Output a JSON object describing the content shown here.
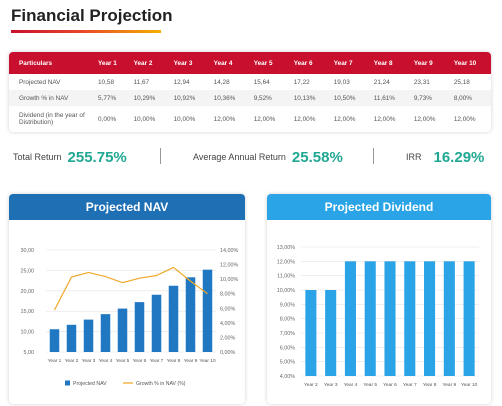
{
  "page": {
    "title": "Financial Projection"
  },
  "table": {
    "headers": [
      "Particulars",
      "Year 1",
      "Year 2",
      "Year 3",
      "Year 4",
      "Year 5",
      "Year 6",
      "Year 7",
      "Year 8",
      "Year 9",
      "Year 10"
    ],
    "rows": [
      [
        "Projected NAV",
        "10,58",
        "11,67",
        "12,94",
        "14,28",
        "15,64",
        "17,22",
        "19,03",
        "21,24",
        "23,31",
        "25,18"
      ],
      [
        "Growth % in NAV",
        "5,77%",
        "10,29%",
        "10,92%",
        "10,36%",
        "9,52%",
        "10,13%",
        "10,50%",
        "11,61%",
        "9,73%",
        "8,00%"
      ],
      [
        "Dividend (in the year of Distribution)",
        "0,00%",
        "10,00%",
        "10,00%",
        "12,00%",
        "12,00%",
        "12,00%",
        "12,00%",
        "12,00%",
        "12,00%",
        "12,00%"
      ]
    ]
  },
  "summary": {
    "total_return_label": "Total Return",
    "total_return_value": "255.75%",
    "aar_label": "Average Annual Return",
    "aar_value": "25.58%",
    "irr_label": "IRR",
    "irr_value": "16.29%"
  },
  "colors": {
    "red": "#c8102e",
    "teal": "#20a893",
    "nav_bar": "#1f78c1",
    "growth_line": "#f0a82a",
    "dividend_bar": "#2aa4e6"
  },
  "chart_data": [
    {
      "type": "bar",
      "title": "Projected NAV",
      "categories": [
        "Year 1",
        "Year 2",
        "Year 3",
        "Year 4",
        "Year 5",
        "Year 6",
        "Year 7",
        "Year 8",
        "Year 9",
        "Year 10"
      ],
      "y_ticks": [
        "5,00",
        "10,00",
        "15,00",
        "20,00",
        "25,00",
        "30,00"
      ],
      "y2_ticks": [
        "0,00%",
        "2,00%",
        "4,00%",
        "6,00%",
        "8,00%",
        "10,00%",
        "12,00%",
        "14,00%"
      ],
      "ylim": [
        5,
        30
      ],
      "y2lim": [
        0,
        14
      ],
      "series": [
        {
          "name": "Projected NAV",
          "kind": "bar",
          "axis": "left",
          "values": [
            10.58,
            11.67,
            12.94,
            14.28,
            15.64,
            17.22,
            19.03,
            21.24,
            23.31,
            25.18
          ]
        },
        {
          "name": "Growth % in NAV (%)",
          "kind": "line",
          "axis": "right",
          "values": [
            5.77,
            10.29,
            10.92,
            10.36,
            9.52,
            10.13,
            10.5,
            11.61,
            9.73,
            8.0
          ]
        }
      ],
      "legend": "bottom",
      "grid": true
    },
    {
      "type": "bar",
      "title": "Projected Dividend",
      "categories": [
        "Year 2",
        "Year 3",
        "Year 4",
        "Year 5",
        "Year 6",
        "Year 7",
        "Year 8",
        "Year 9",
        "Year 10"
      ],
      "y_ticks": [
        "4,00%",
        "5,00%",
        "6,00%",
        "7,00%",
        "8,00%",
        "9,00%",
        "10,00%",
        "11,00%",
        "12,00%",
        "13,00%"
      ],
      "ylim": [
        4,
        13
      ],
      "values": [
        10,
        10,
        12,
        12,
        12,
        12,
        12,
        12,
        12
      ],
      "grid": true
    }
  ]
}
